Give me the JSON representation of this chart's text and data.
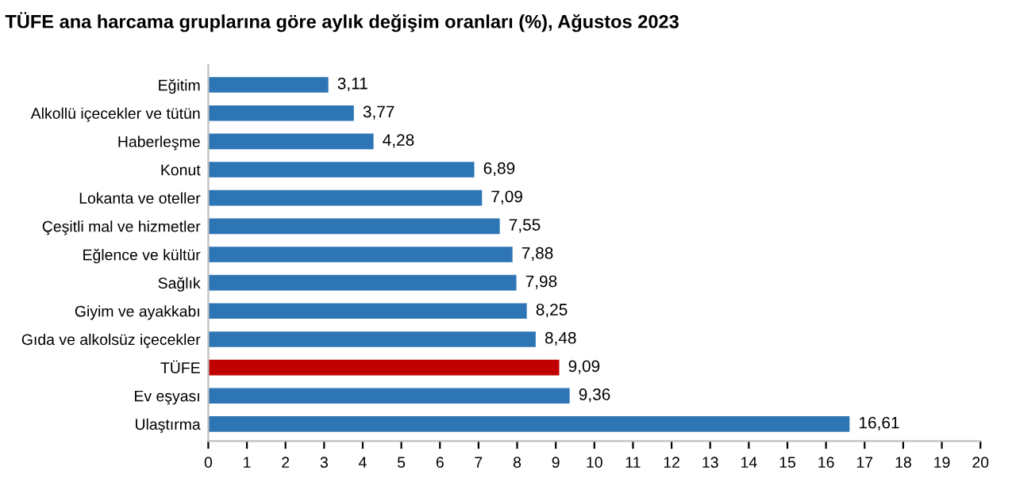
{
  "chart_data": {
    "type": "bar",
    "orientation": "horizontal",
    "title": "TÜFE ana harcama gruplarına göre aylık değişim oranları (%), Ağustos 2023",
    "categories": [
      "Eğitim",
      "Alkollü içecekler ve tütün",
      "Haberleşme",
      "Konut",
      "Lokanta ve oteller",
      "Çeşitli mal ve hizmetler",
      "Eğlence ve kültür",
      "Sağlık",
      "Giyim ve ayakkabı",
      "Gıda ve alkolsüz içecekler",
      "TÜFE",
      "Ev eşyası",
      "Ulaştırma"
    ],
    "values": [
      3.11,
      3.77,
      4.28,
      6.89,
      7.09,
      7.55,
      7.88,
      7.98,
      8.25,
      8.48,
      9.09,
      9.36,
      16.61
    ],
    "value_labels": [
      "3,11",
      "3,77",
      "4,28",
      "6,89",
      "7,09",
      "7,55",
      "7,88",
      "7,98",
      "8,25",
      "8,48",
      "9,09",
      "9,36",
      "16,61"
    ],
    "colors": [
      "#2e75b6",
      "#2e75b6",
      "#2e75b6",
      "#2e75b6",
      "#2e75b6",
      "#2e75b6",
      "#2e75b6",
      "#2e75b6",
      "#2e75b6",
      "#2e75b6",
      "#c00000",
      "#2e75b6",
      "#2e75b6"
    ],
    "xlim": [
      0,
      20
    ],
    "xticks": [
      0,
      1,
      2,
      3,
      4,
      5,
      6,
      7,
      8,
      9,
      10,
      11,
      12,
      13,
      14,
      15,
      16,
      17,
      18,
      19,
      20
    ],
    "grid": false
  }
}
